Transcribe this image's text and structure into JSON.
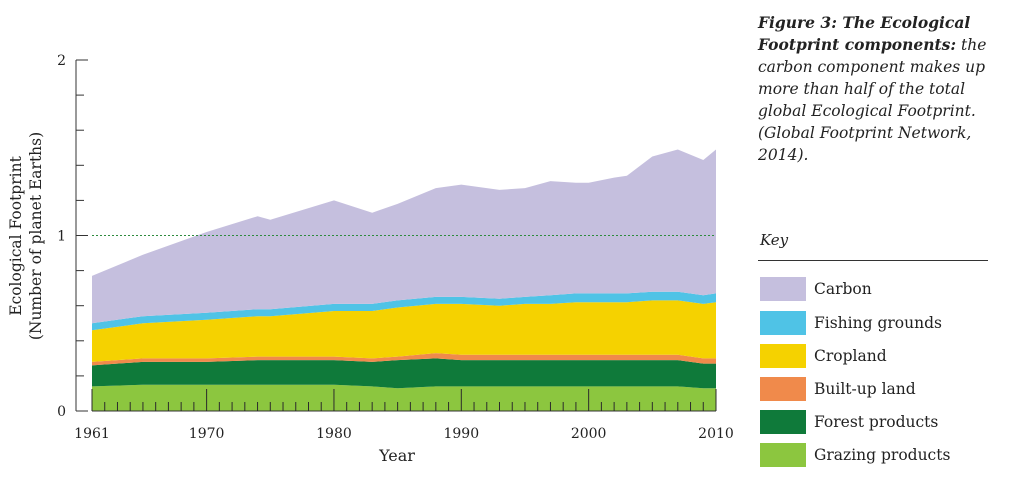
{
  "caption": {
    "bold": "Figure 3: The Ecological Footprint components:",
    "text": " the carbon component makes up more than half of the total global Ecological Footprint. (Global Footprint Network, 2014)."
  },
  "key": {
    "title": "Key",
    "items": [
      {
        "label": "Carbon",
        "color": "#c5bfde"
      },
      {
        "label": "Fishing grounds",
        "color": "#4fc3e6"
      },
      {
        "label": "Cropland",
        "color": "#f5d200"
      },
      {
        "label": "Built-up land",
        "color": "#f08a4b"
      },
      {
        "label": "Forest products",
        "color": "#0f7a3a"
      },
      {
        "label": "Grazing products",
        "color": "#8cc63f"
      }
    ]
  },
  "chart_data": {
    "type": "area",
    "stacked": true,
    "xlabel": "Year",
    "ylabel": "Ecological Footprint (Number of planet Earths)",
    "ylim": [
      0,
      2
    ],
    "yticks": [
      0,
      1,
      2
    ],
    "xticks": [
      1961,
      1970,
      1980,
      1990,
      2000,
      2010
    ],
    "reference_line": 1,
    "x": [
      1961,
      1965,
      1970,
      1974,
      1975,
      1980,
      1983,
      1985,
      1988,
      1990,
      1993,
      1995,
      1997,
      1999,
      2000,
      2002,
      2003,
      2005,
      2007,
      2009,
      2010
    ],
    "series": [
      {
        "name": "Grazing products",
        "color": "#8cc63f",
        "values": [
          0.14,
          0.15,
          0.15,
          0.15,
          0.15,
          0.15,
          0.14,
          0.13,
          0.14,
          0.14,
          0.14,
          0.14,
          0.14,
          0.14,
          0.14,
          0.14,
          0.14,
          0.14,
          0.14,
          0.13,
          0.13
        ]
      },
      {
        "name": "Forest products",
        "color": "#0f7a3a",
        "values": [
          0.12,
          0.13,
          0.13,
          0.14,
          0.14,
          0.14,
          0.14,
          0.16,
          0.16,
          0.15,
          0.15,
          0.15,
          0.15,
          0.15,
          0.15,
          0.15,
          0.15,
          0.15,
          0.15,
          0.14,
          0.14
        ]
      },
      {
        "name": "Built-up land",
        "color": "#f08a4b",
        "values": [
          0.02,
          0.02,
          0.02,
          0.02,
          0.02,
          0.02,
          0.02,
          0.02,
          0.03,
          0.03,
          0.03,
          0.03,
          0.03,
          0.03,
          0.03,
          0.03,
          0.03,
          0.03,
          0.03,
          0.03,
          0.03
        ]
      },
      {
        "name": "Cropland",
        "color": "#f5d200",
        "values": [
          0.18,
          0.2,
          0.22,
          0.23,
          0.23,
          0.26,
          0.27,
          0.28,
          0.28,
          0.29,
          0.28,
          0.29,
          0.29,
          0.3,
          0.3,
          0.3,
          0.3,
          0.31,
          0.31,
          0.31,
          0.32
        ]
      },
      {
        "name": "Fishing grounds",
        "color": "#4fc3e6",
        "values": [
          0.04,
          0.04,
          0.04,
          0.04,
          0.04,
          0.04,
          0.04,
          0.04,
          0.04,
          0.04,
          0.04,
          0.04,
          0.05,
          0.05,
          0.05,
          0.05,
          0.05,
          0.05,
          0.05,
          0.05,
          0.05
        ]
      },
      {
        "name": "Carbon",
        "color": "#c5bfde",
        "values": [
          0.27,
          0.35,
          0.46,
          0.53,
          0.51,
          0.59,
          0.52,
          0.55,
          0.62,
          0.64,
          0.62,
          0.62,
          0.65,
          0.63,
          0.63,
          0.66,
          0.67,
          0.77,
          0.81,
          0.77,
          0.82
        ]
      }
    ]
  }
}
